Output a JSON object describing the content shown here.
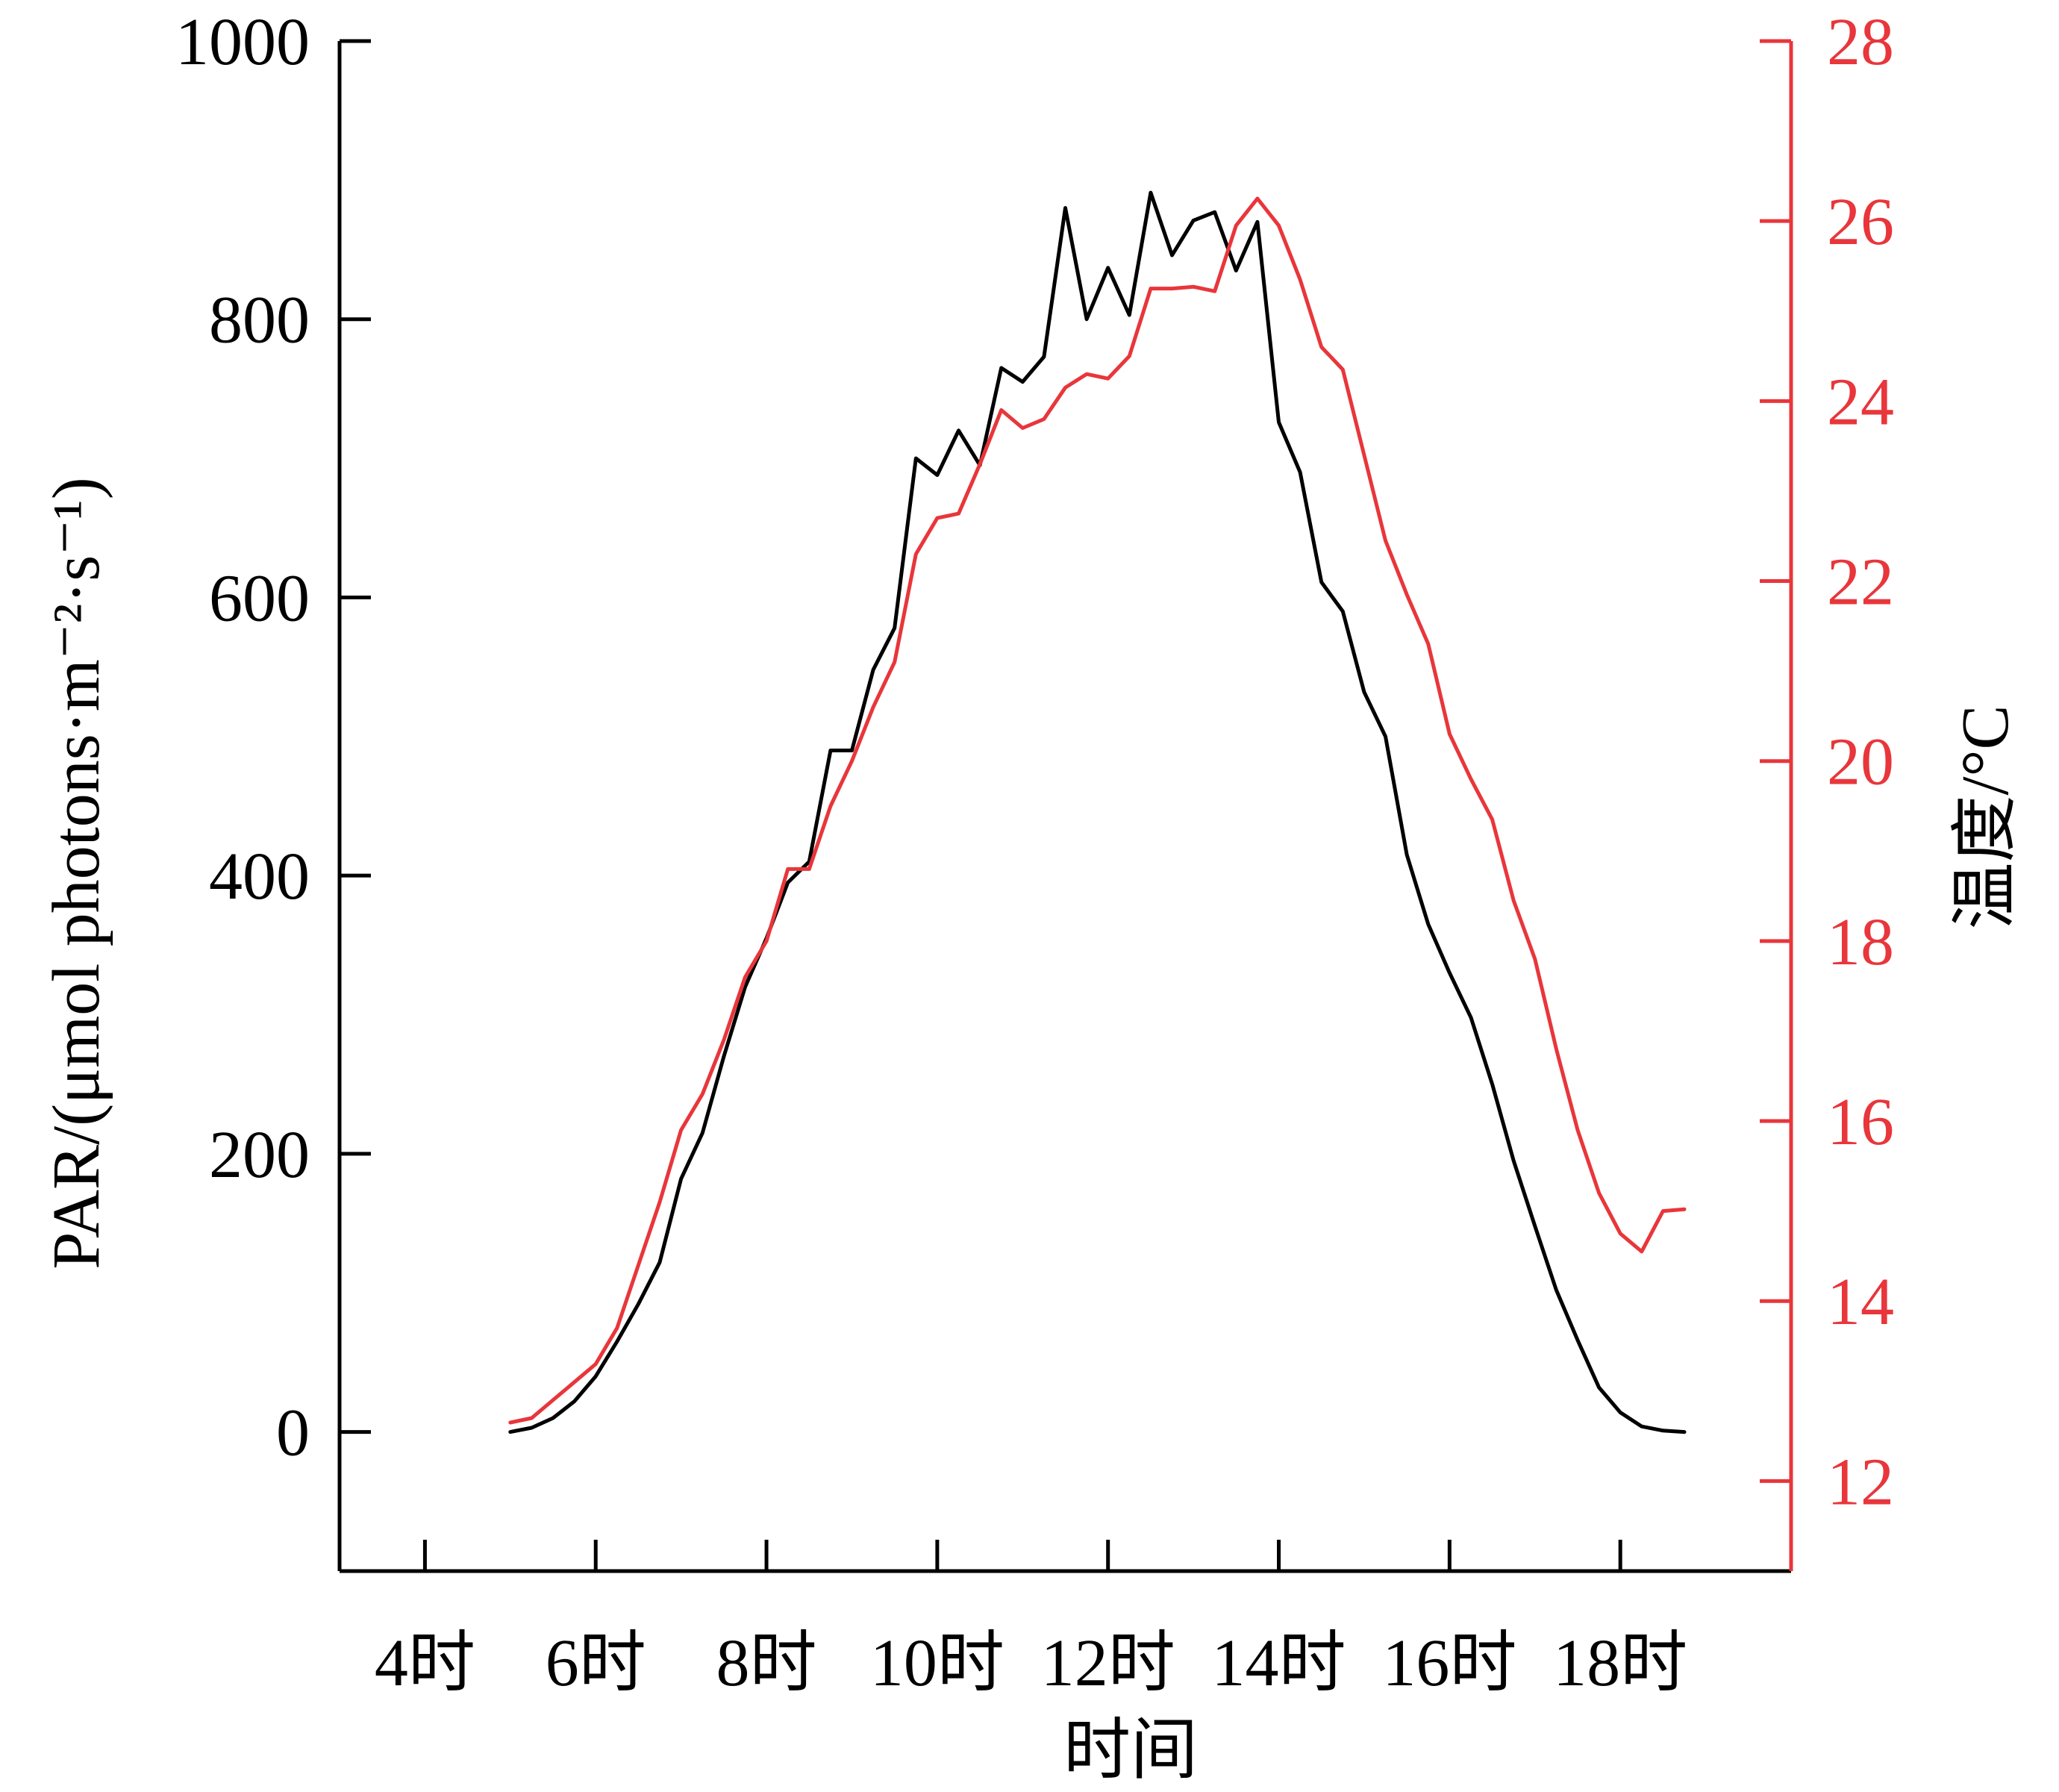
{
  "chart_data": {
    "type": "line",
    "xlabel": "时间",
    "ylabel": "PAR/(μmol photons·m⁻²·s⁻¹)",
    "y2label": "温度/°C",
    "xlim": [
      3,
      20
    ],
    "ylim": [
      -100,
      1000
    ],
    "y2lim": [
      11,
      28
    ],
    "xticks": [
      {
        "value": 4,
        "label": "4时"
      },
      {
        "value": 6,
        "label": "6时"
      },
      {
        "value": 8,
        "label": "8时"
      },
      {
        "value": 10,
        "label": "10时"
      },
      {
        "value": 12,
        "label": "12时"
      },
      {
        "value": 14,
        "label": "14时"
      },
      {
        "value": 16,
        "label": "16时"
      },
      {
        "value": 18,
        "label": "18时"
      }
    ],
    "yticks": [
      0,
      200,
      400,
      600,
      800,
      1000
    ],
    "y2ticks": [
      12,
      14,
      16,
      18,
      20,
      22,
      24,
      26,
      28
    ],
    "series": [
      {
        "axis": "left",
        "color": "#000000",
        "x": [
          5.0,
          5.25,
          5.5,
          5.75,
          6.0,
          6.25,
          6.5,
          6.75,
          7.0,
          7.25,
          7.5,
          7.75,
          8.0,
          8.25,
          8.5,
          8.75,
          9.0,
          9.25,
          9.5,
          9.75,
          10.0,
          10.25,
          10.5,
          10.75,
          11.0,
          11.25,
          11.5,
          11.75,
          12.0,
          12.25,
          12.5,
          12.75,
          13.0,
          13.25,
          13.5,
          13.75,
          14.0,
          14.25,
          14.5,
          14.75,
          15.0,
          15.25,
          15.5,
          15.75,
          16.0,
          16.25,
          16.5,
          16.75,
          17.0,
          17.25,
          17.5,
          17.75,
          18.0,
          18.25,
          18.5,
          18.75
        ],
        "values": [
          0,
          3,
          10,
          22,
          40,
          65,
          92,
          122,
          182,
          215,
          270,
          320,
          355,
          395,
          410,
          490,
          490,
          548,
          578,
          700,
          688,
          720,
          695,
          765,
          755,
          773,
          880,
          800,
          837,
          803,
          891,
          846,
          871,
          877,
          835,
          870,
          726,
          690,
          611,
          590,
          532,
          500,
          415,
          365,
          330,
          298,
          250,
          195,
          148,
          102,
          66,
          32,
          14,
          4,
          1,
          0
        ]
      },
      {
        "axis": "right",
        "color": "#e8363b",
        "x": [
          5.0,
          5.25,
          5.5,
          5.75,
          6.0,
          6.25,
          6.5,
          6.75,
          7.0,
          7.25,
          7.5,
          7.75,
          8.0,
          8.25,
          8.5,
          8.75,
          9.0,
          9.25,
          9.5,
          9.75,
          10.0,
          10.25,
          10.5,
          10.75,
          11.0,
          11.25,
          11.5,
          11.75,
          12.0,
          12.25,
          12.5,
          12.75,
          13.0,
          13.25,
          13.5,
          13.75,
          14.0,
          14.25,
          14.5,
          14.75,
          15.0,
          15.25,
          15.5,
          15.75,
          16.0,
          16.25,
          16.5,
          16.75,
          17.0,
          17.25,
          17.5,
          17.75,
          18.0,
          18.25,
          18.5,
          18.75
        ],
        "values": [
          12.65,
          12.7,
          12.9,
          13.1,
          13.3,
          13.7,
          14.4,
          15.1,
          15.9,
          16.3,
          16.9,
          17.6,
          18.0,
          18.8,
          18.8,
          19.5,
          20.0,
          20.6,
          21.1,
          22.3,
          22.7,
          22.75,
          23.3,
          23.9,
          23.7,
          23.8,
          24.15,
          24.3,
          24.25,
          24.5,
          25.25,
          25.25,
          25.27,
          25.22,
          25.95,
          26.25,
          25.95,
          25.35,
          24.6,
          24.35,
          23.4,
          22.45,
          21.85,
          21.3,
          20.3,
          19.8,
          19.35,
          18.45,
          17.8,
          16.8,
          15.9,
          15.2,
          14.75,
          14.55,
          15.0,
          15.02
        ]
      }
    ]
  }
}
